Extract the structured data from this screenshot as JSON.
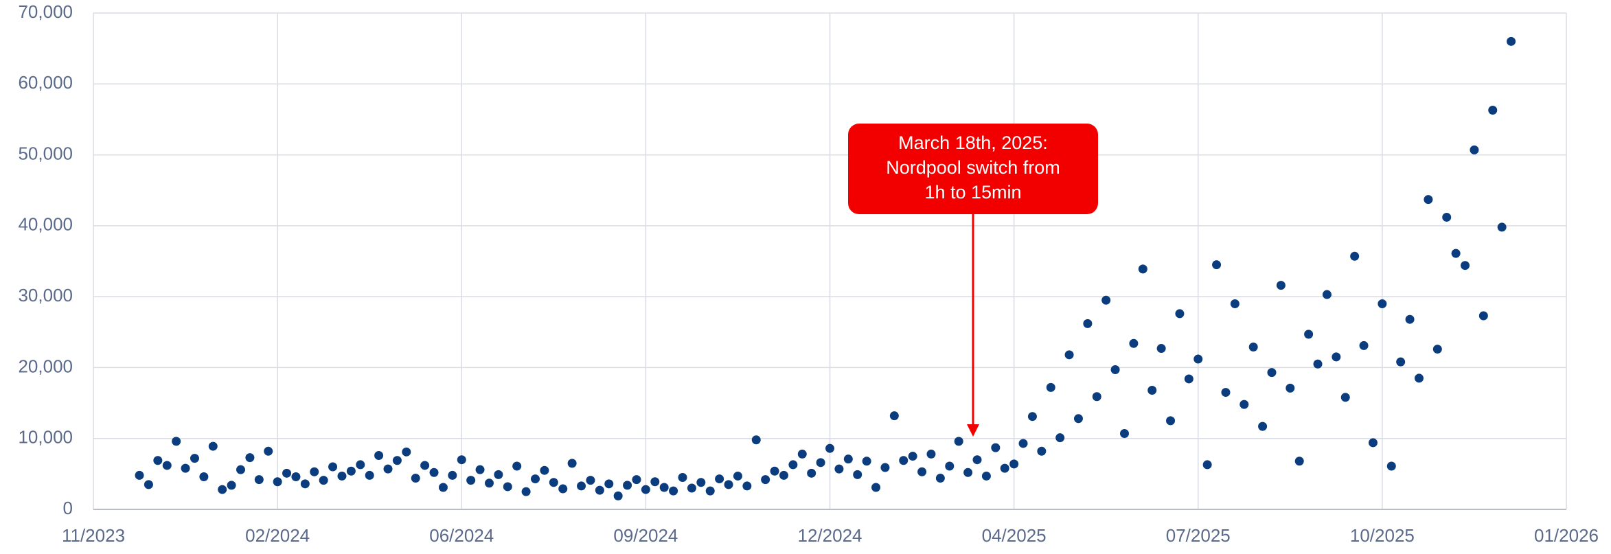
{
  "chart_data": {
    "type": "scatter",
    "annotation": [
      "March 18th, 2025:",
      "Nordpool switch from",
      "1h to 15min"
    ],
    "color": "#0b3d7e",
    "grid": true,
    "xlim": [
      45230,
      46030
    ],
    "xticks": [
      {
        "value": 45230,
        "label": "11/2023"
      },
      {
        "value": 45330,
        "label": "02/2024"
      },
      {
        "value": 45430,
        "label": "06/2024"
      },
      {
        "value": 45530,
        "label": "09/2024"
      },
      {
        "value": 45630,
        "label": "12/2024"
      },
      {
        "value": 45730,
        "label": "04/2025"
      },
      {
        "value": 45830,
        "label": "07/2025"
      },
      {
        "value": 45930,
        "label": "10/2025"
      },
      {
        "value": 46030,
        "label": "01/2026"
      }
    ],
    "ylim": [
      0,
      70000
    ],
    "yticks": [
      0,
      {
        "value": 10000,
        "label": "10,000"
      },
      {
        "value": 20000,
        "label": "20,000"
      },
      {
        "value": 30000,
        "label": "30,000"
      },
      {
        "value": 40000,
        "label": "40,000"
      },
      {
        "value": 50000,
        "label": "50,000"
      },
      {
        "value": 60000,
        "label": "60,000"
      },
      {
        "value": 70000,
        "label": "70,000"
      }
    ],
    "x": [
      45255,
      45260,
      45265,
      45270,
      45275,
      45280,
      45285,
      45290,
      45295,
      45300,
      45305,
      45310,
      45315,
      45320,
      45325,
      45330,
      45335,
      45340,
      45345,
      45350,
      45355,
      45360,
      45365,
      45370,
      45375,
      45380,
      45385,
      45390,
      45395,
      45400,
      45405,
      45410,
      45415,
      45420,
      45425,
      45430,
      45435,
      45440,
      45445,
      45450,
      45455,
      45460,
      45465,
      45470,
      45475,
      45480,
      45485,
      45490,
      45495,
      45500,
      45505,
      45510,
      45515,
      45520,
      45525,
      45530,
      45535,
      45540,
      45545,
      45550,
      45555,
      45560,
      45565,
      45570,
      45575,
      45580,
      45585,
      45590,
      45595,
      45600,
      45605,
      45610,
      45615,
      45620,
      45625,
      45630,
      45635,
      45640,
      45645,
      45650,
      45655,
      45660,
      45665,
      45670,
      45675,
      45680,
      45685,
      45690,
      45695,
      45700,
      45705,
      45710,
      45715,
      45720,
      45725,
      45730,
      45735,
      45740,
      45745,
      45750,
      45755,
      45760,
      45765,
      45770,
      45775,
      45780,
      45785,
      45790,
      45795,
      45800,
      45805,
      45810,
      45815,
      45820,
      45825,
      45830,
      45835,
      45840,
      45845,
      45850,
      45855,
      45860,
      45865,
      45870,
      45875,
      45880,
      45885,
      45890,
      45895,
      45900,
      45905,
      45910,
      45915,
      45920,
      45925,
      45930,
      45935,
      45940,
      45945,
      45950,
      45955,
      45960,
      45965,
      45970,
      45975,
      45980,
      45985,
      45990,
      45995,
      46000
    ],
    "values": [
      4800,
      3500,
      6900,
      6200,
      9600,
      5800,
      7200,
      4600,
      8900,
      2800,
      3400,
      5600,
      7300,
      4200,
      8200,
      3900,
      5100,
      4600,
      3600,
      5300,
      4100,
      6000,
      4700,
      5400,
      6300,
      4800,
      7600,
      5700,
      6900,
      8100,
      4400,
      6200,
      5200,
      3100,
      4800,
      7000,
      4100,
      5600,
      3700,
      4900,
      3200,
      6100,
      2500,
      4300,
      5500,
      3800,
      2900,
      6500,
      3300,
      4100,
      2700,
      3600,
      1900,
      3400,
      4200,
      2800,
      3900,
      3100,
      2600,
      4500,
      3000,
      3800,
      2600,
      4300,
      3500,
      4700,
      3300,
      9800,
      4200,
      5400,
      4800,
      6300,
      7800,
      5100,
      6600,
      8600,
      5700,
      7100,
      4900,
      6800,
      3100,
      5900,
      13200,
      6900,
      7500,
      5300,
      7800,
      4400,
      6100,
      9600,
      5200,
      7000,
      4700,
      8700,
      5800,
      6400,
      9300,
      13100,
      8200,
      17200,
      10100,
      21800,
      12800,
      26200,
      15900,
      29500,
      19700,
      10700,
      23400,
      33900,
      16800,
      22700,
      12500,
      27600,
      18400,
      21200,
      6300,
      34500,
      16500,
      29000,
      14800,
      22900,
      11700,
      19300,
      31600,
      17100,
      6800,
      24700,
      20500,
      30300,
      21500,
      15800,
      35700,
      23100,
      9400,
      29000,
      6100,
      20800,
      26800,
      18500,
      43700,
      22600,
      41200,
      36100,
      34400,
      50700,
      27300,
      56300,
      39800,
      66000
    ]
  }
}
